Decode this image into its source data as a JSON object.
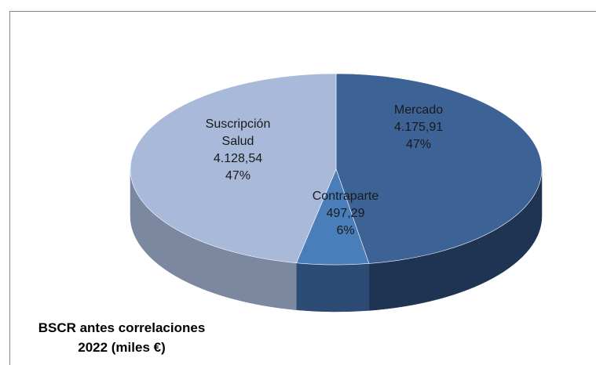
{
  "chart_data": {
    "type": "pie",
    "title": "BSCR antes correlaciones 2022 (miles €)",
    "categories": [
      "Mercado",
      "Contraparte",
      "Suscripción Salud"
    ],
    "values": [
      4175.91,
      497.29,
      4128.54
    ],
    "value_labels": [
      "4.175,91",
      "497,29",
      "4.128,54"
    ],
    "percentages": [
      47,
      6,
      47
    ],
    "percentage_labels": [
      "47%",
      "6%",
      "47%"
    ],
    "colors": [
      "#3d6396",
      "#4a7ebb",
      "#a9b9d9"
    ],
    "side_colors": [
      "#1f3452",
      "#2d4c75",
      "#7c889f"
    ]
  }
}
